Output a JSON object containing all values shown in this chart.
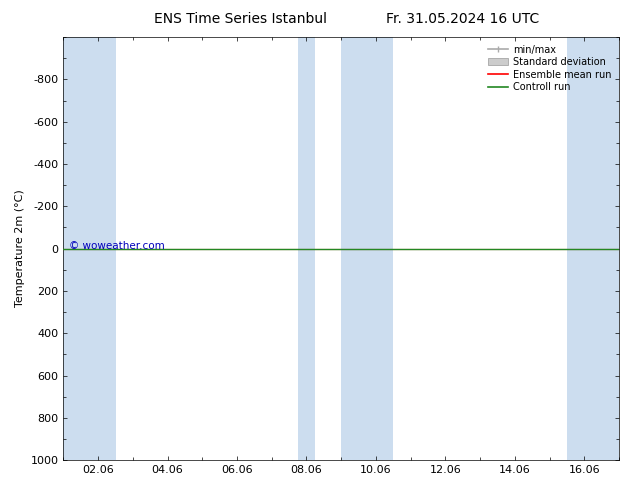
{
  "title": "ENS Time Series Istanbul",
  "title2": "Fr. 31.05.2024 16 UTC",
  "ylabel": "Temperature 2m (°C)",
  "ylim": [
    -1000,
    1000
  ],
  "yticks": [
    -800,
    -600,
    -400,
    -200,
    0,
    200,
    400,
    600,
    800,
    1000
  ],
  "xtick_labels": [
    "02.06",
    "04.06",
    "06.06",
    "08.06",
    "10.06",
    "12.06",
    "14.06",
    "16.06"
  ],
  "xtick_positions": [
    1,
    3,
    5,
    7,
    9,
    11,
    13,
    15
  ],
  "shade_ranges": [
    [
      0,
      1.5
    ],
    [
      6.75,
      7.25
    ],
    [
      8.0,
      9.5
    ],
    [
      14.5,
      16
    ]
  ],
  "watermark": "© woweather.com",
  "watermark_color": "#0000bb",
  "line_y": 0,
  "bg_color": "#ffffff",
  "shade_color": "#ccddef",
  "ensemble_mean_color": "#ff0000",
  "control_run_color": "#228822",
  "legend_labels": [
    "min/max",
    "Standard deviation",
    "Ensemble mean run",
    "Controll run"
  ],
  "legend_line_colors": [
    "#999999",
    "#bbbbbb",
    "#ff0000",
    "#228822"
  ],
  "legend_patch_colors": [
    "#cccccc",
    "#cccccc",
    null,
    null
  ],
  "x_min": 0,
  "x_max": 16
}
